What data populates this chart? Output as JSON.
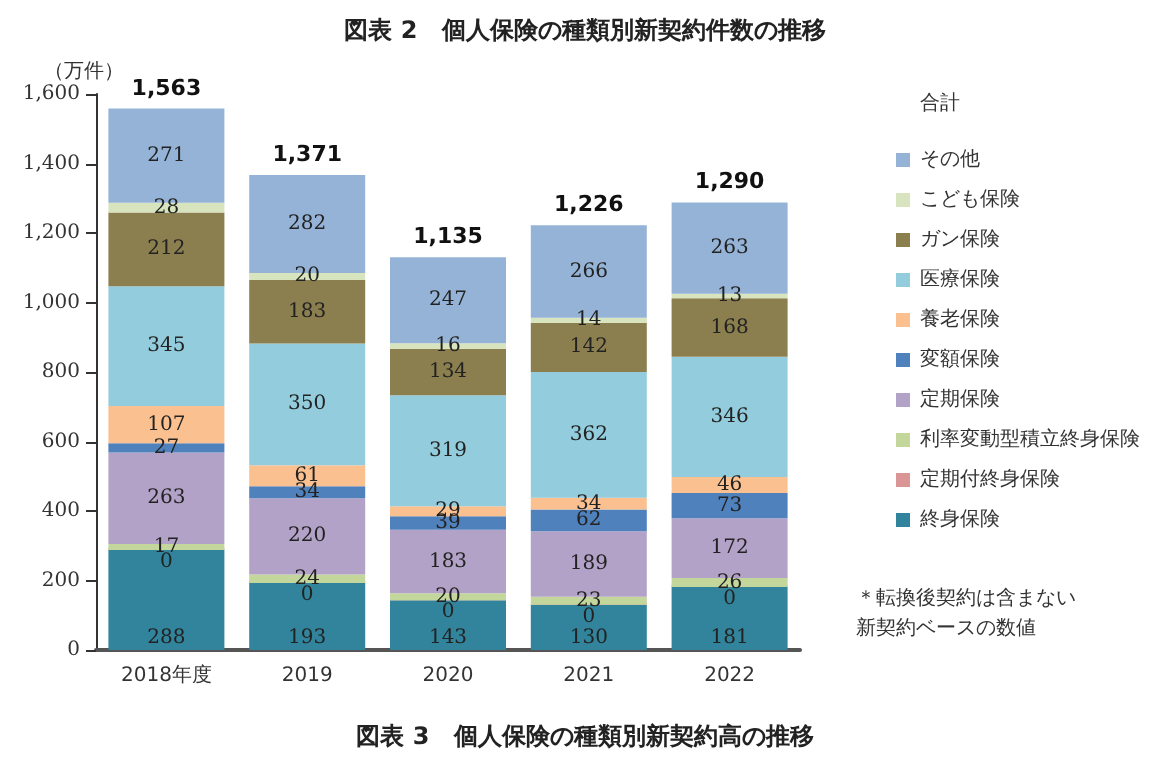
{
  "chart_data": {
    "type": "bar",
    "stacked": true,
    "title": "図表 2　個人保険の種類別新契約件数の推移",
    "ylabel": "（万件）",
    "legend_title": "合計",
    "legend": "right",
    "grid": false,
    "data_labels": true,
    "categories": [
      "2018年度",
      "2019",
      "2020",
      "2021",
      "2022"
    ],
    "ylim": [
      0,
      1600
    ],
    "yticks": [
      0,
      {
        "value": 200,
        "label": "200"
      },
      {
        "value": 400,
        "label": "400"
      },
      {
        "value": 600,
        "label": "600"
      },
      {
        "value": 800,
        "label": "800"
      },
      {
        "value": 1000,
        "label": "1,000"
      },
      {
        "value": 1200,
        "label": "1,200"
      },
      {
        "value": 1400,
        "label": "1,400"
      },
      {
        "value": 1600,
        "label": "1,600"
      }
    ],
    "series": [
      {
        "name": "終身保険",
        "color": "#31849b",
        "values": [
          288,
          193,
          143,
          130,
          181
        ]
      },
      {
        "name": "定期付終身保険",
        "color": "#d99694",
        "values": [
          0,
          0,
          0,
          0,
          0
        ]
      },
      {
        "name": "利率変動型積立終身保険",
        "color": "#c3d69b",
        "values": [
          17,
          24,
          20,
          23,
          26
        ]
      },
      {
        "name": "定期保険",
        "color": "#b3a2c7",
        "values": [
          263,
          220,
          183,
          189,
          172
        ]
      },
      {
        "name": "変額保険",
        "color": "#4f81bd",
        "values": [
          27,
          34,
          39,
          62,
          73
        ]
      },
      {
        "name": "養老保険",
        "color": "#fac090",
        "values": [
          107,
          61,
          29,
          34,
          46
        ]
      },
      {
        "name": "医療保険",
        "color": "#93cddd",
        "values": [
          345,
          350,
          319,
          362,
          346
        ]
      },
      {
        "name": "ガン保険",
        "color": "#8c7f4f",
        "values": [
          212,
          183,
          134,
          142,
          168
        ]
      },
      {
        "name": "こども保険",
        "color": "#d7e4bd",
        "values": [
          28,
          20,
          16,
          14,
          13
        ]
      },
      {
        "name": "その他",
        "color": "#95b3d7",
        "values": [
          271,
          282,
          247,
          266,
          263
        ]
      }
    ],
    "totals": [
      "1,563",
      "1,371",
      "1,135",
      "1,226",
      "1,290"
    ],
    "annotations": [
      "＊転換後契約は含まない新契約ベースの数値",
      "図表 3　個人保険の種類別新契約高の推移"
    ]
  }
}
